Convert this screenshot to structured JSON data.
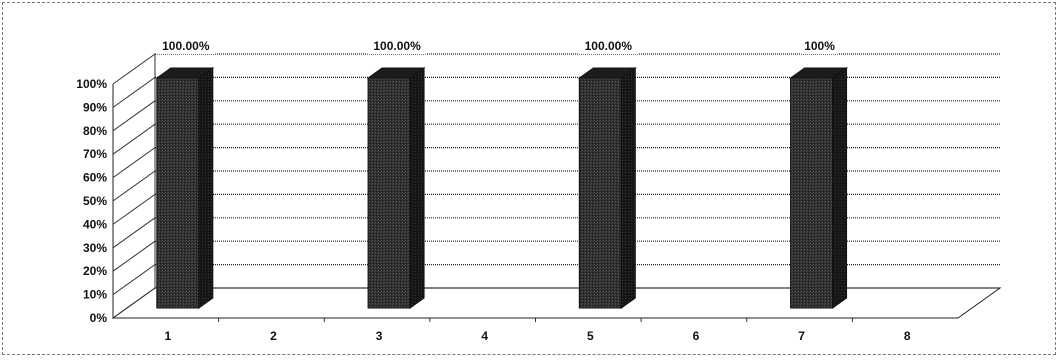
{
  "chart_data": {
    "type": "bar",
    "title": "",
    "xlabel": "",
    "ylabel": "",
    "categories": [
      "1",
      "2",
      "3",
      "4",
      "5",
      "6",
      "7",
      "8"
    ],
    "values": [
      100,
      null,
      100,
      null,
      100,
      null,
      100,
      null
    ],
    "data_labels": [
      "100.00%",
      "",
      "100.00%",
      "",
      "100.00%",
      "",
      "100%",
      ""
    ],
    "ylim": [
      0,
      100
    ],
    "y_ticks": [
      "0%",
      "10%",
      "20%",
      "30%",
      "40%",
      "50%",
      "60%",
      "70%",
      "80%",
      "90%",
      "100%"
    ],
    "grid": true,
    "legend": "none",
    "bar_color": "#2a2a2a",
    "style": "3d-column"
  }
}
